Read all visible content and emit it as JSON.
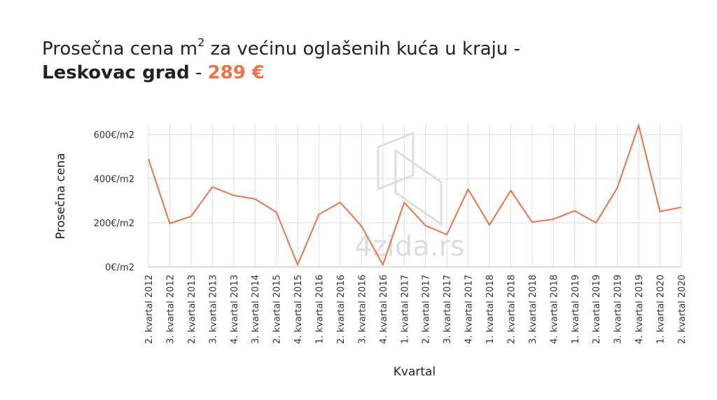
{
  "chart_data": {
    "type": "line",
    "title_parts": [
      "Prosečna cena m",
      "2",
      " za većinu oglašenih kuća u kraju -",
      "Leskovac grad",
      " - ",
      "289 €"
    ],
    "watermark": "4zida.rs",
    "xlabel": "Kvartal",
    "ylabel": "Prosečna cena",
    "categories": [
      "2. kvartal 2012",
      "3. kvartal 2012",
      "2. kvartal 2013",
      "3. kvartal 2013",
      "4. kvartal 2013",
      "3. kvartal 2014",
      "2. kvartal 2015",
      "4. kvartal 2015",
      "1. kvartal 2016",
      "2. kvartal 2016",
      "3. kvartal 2016",
      "4. kvartal 2016",
      "1. kvartal 2017",
      "2. kvartal 2017",
      "3. kvartal 2017",
      "4. kvartal 2017",
      "1. kvartal 2018",
      "2. kvartal 2018",
      "3. kvartal 2018",
      "4. kvartal 2018",
      "1. kvartal 2019",
      "2. kvartal 2019",
      "3. kvartal 2019",
      "4. kvartal 2019",
      "1. kvartal 2020",
      "2. kvartal 2020"
    ],
    "values": [
      489,
      197,
      229,
      362,
      324,
      308,
      248,
      10,
      238,
      292,
      184,
      10,
      292,
      187,
      146,
      352,
      190,
      346,
      203,
      216,
      254,
      200,
      359,
      641,
      251,
      270
    ],
    "color": "#f0704a",
    "accent_color": "#f0704a",
    "ylim": [
      0,
      650
    ],
    "yticks": [
      {
        "value": 0,
        "label": "0€/m2"
      },
      {
        "value": 200,
        "label": "200€/m2"
      },
      {
        "value": 400,
        "label": "400€/m2"
      },
      {
        "value": 600,
        "label": "600€/m2"
      }
    ],
    "grid": true
  }
}
